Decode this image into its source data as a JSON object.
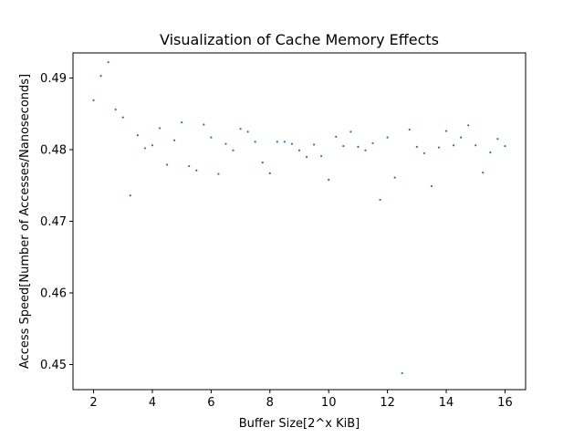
{
  "chart_data": {
    "type": "scatter",
    "title": "Visualization of Cache Memory Effects",
    "xlabel": "Buffer Size[2^x KiB]",
    "ylabel": "Access Speed[Number of Accesses/Nanoseconds]",
    "xlim": [
      1.3,
      16.7
    ],
    "ylim": [
      0.4465,
      0.4935
    ],
    "xticks": [
      2,
      4,
      6,
      8,
      10,
      12,
      14,
      16
    ],
    "yticks": [
      0.45,
      0.46,
      0.47,
      0.48,
      0.49
    ],
    "ytick_labels": [
      "0.45",
      "0.46",
      "0.47",
      "0.48",
      "0.49"
    ],
    "grid": false,
    "marker_color": "#1f77b4",
    "series": [
      {
        "x": [
          2.0,
          2.25,
          2.5,
          2.75,
          3.0,
          3.25,
          3.5,
          3.75,
          4.0,
          4.25,
          4.5,
          4.75,
          5.0,
          5.25,
          5.5,
          5.75,
          6.0,
          6.25,
          6.5,
          6.75,
          7.0,
          7.25,
          7.5,
          7.75,
          8.0,
          8.25,
          8.5,
          8.75,
          9.0,
          9.25,
          9.5,
          9.75,
          10.0,
          10.25,
          10.5,
          10.75,
          11.0,
          11.25,
          11.5,
          11.75,
          12.0,
          12.25,
          12.5,
          12.75,
          13.0,
          13.25,
          13.5,
          13.75,
          14.0,
          14.25,
          14.5,
          14.75,
          15.0,
          15.25,
          15.5,
          15.75,
          16.0
        ],
        "y": [
          0.4869,
          0.4903,
          0.4922,
          0.4856,
          0.4845,
          0.4736,
          0.482,
          0.4802,
          0.4806,
          0.483,
          0.4779,
          0.4813,
          0.4838,
          0.4777,
          0.4771,
          0.4835,
          0.4817,
          0.4766,
          0.4808,
          0.4799,
          0.4829,
          0.4825,
          0.4811,
          0.4782,
          0.4767,
          0.4811,
          0.4811,
          0.4808,
          0.4799,
          0.479,
          0.4807,
          0.4791,
          0.4758,
          0.4818,
          0.4805,
          0.4825,
          0.4804,
          0.4799,
          0.4809,
          0.473,
          0.4817,
          0.4761,
          0.4488,
          0.4828,
          0.4804,
          0.4795,
          0.4749,
          0.4803,
          0.4826,
          0.4806,
          0.4817,
          0.4834,
          0.4806,
          0.4768,
          0.4796,
          0.4815,
          0.4805
        ]
      }
    ]
  }
}
